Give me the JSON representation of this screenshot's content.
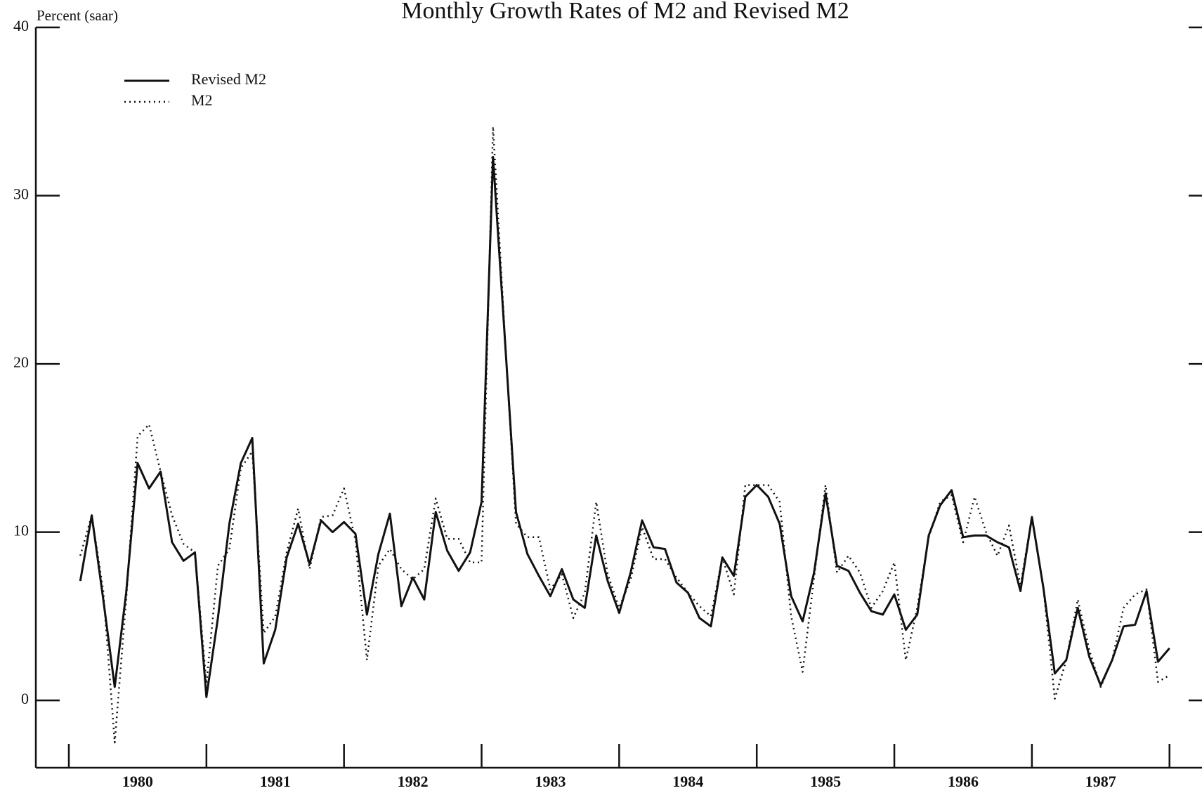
{
  "chart_data": {
    "type": "line",
    "title": "Monthly Growth Rates of M2 and Revised M2",
    "y_label": "Percent (saar)",
    "categories": [
      null,
      null,
      null,
      null,
      null,
      "1980",
      null,
      null,
      null,
      null,
      null,
      null,
      null,
      null,
      null,
      null,
      null,
      "1981",
      null,
      null,
      null,
      null,
      null,
      null,
      null,
      null,
      null,
      null,
      null,
      "1982",
      null,
      null,
      null,
      null,
      null,
      null,
      null,
      null,
      null,
      null,
      null,
      "1983",
      null,
      null,
      null,
      null,
      null,
      null,
      null,
      null,
      null,
      null,
      null,
      "1984",
      null,
      null,
      null,
      null,
      null,
      null,
      null,
      null,
      null,
      null,
      null,
      "1985",
      null,
      null,
      null,
      null,
      null,
      null,
      null,
      null,
      null,
      null,
      null,
      "1986",
      null,
      null,
      null,
      null,
      null,
      null,
      null,
      null,
      null,
      null,
      null,
      "1987",
      null,
      null,
      null,
      null,
      null,
      null
    ],
    "series": [
      {
        "name": "Revised M2",
        "color": "#111111",
        "dash": "solid",
        "values": [
          7.1,
          11.0,
          6.0,
          0.8,
          6.4,
          14.1,
          12.6,
          13.6,
          9.4,
          8.3,
          8.8,
          0.2,
          4.9,
          10.5,
          14.1,
          15.6,
          2.2,
          4.2,
          8.5,
          10.5,
          8.1,
          10.7,
          10.0,
          10.6,
          9.9,
          5.1,
          8.7,
          11.1,
          5.6,
          7.3,
          6.0,
          11.2,
          8.9,
          7.7,
          8.8,
          11.8,
          32.3,
          21.8,
          11.2,
          8.7,
          7.4,
          6.2,
          7.8,
          6.0,
          5.5,
          9.8,
          7.1,
          5.2,
          7.6,
          10.7,
          9.1,
          9.0,
          7.0,
          6.4,
          4.9,
          4.4,
          8.5,
          7.4,
          12.1,
          12.8,
          12.1,
          10.5,
          6.2,
          4.7,
          7.6,
          12.3,
          8.0,
          7.7,
          6.4,
          5.3,
          5.1,
          6.3,
          4.2,
          5.1,
          9.8,
          11.6,
          12.5,
          9.7,
          9.8,
          9.8,
          9.4,
          9.1,
          6.5,
          10.9,
          6.7,
          1.6,
          2.4,
          5.5,
          2.6,
          0.9,
          2.4,
          4.4,
          4.5,
          6.5,
          2.3,
          3.1
        ]
      },
      {
        "name": "M2",
        "color": "#111111",
        "dash": "dotted",
        "values": [
          8.6,
          11.0,
          6.5,
          -2.5,
          6.0,
          15.7,
          16.4,
          13.6,
          11.0,
          9.3,
          8.8,
          1.0,
          8.0,
          9.0,
          13.8,
          14.8,
          4.0,
          5.0,
          8.8,
          11.4,
          7.8,
          10.9,
          11.0,
          12.6,
          9.5,
          2.4,
          8.0,
          9.0,
          7.8,
          7.2,
          7.8,
          12.0,
          9.6,
          9.6,
          8.2,
          8.2,
          34.1,
          22.0,
          10.5,
          9.7,
          9.7,
          6.6,
          7.5,
          4.9,
          6.4,
          11.8,
          7.5,
          5.5,
          7.2,
          10.3,
          8.4,
          8.4,
          7.3,
          6.4,
          5.6,
          5.0,
          8.5,
          6.3,
          12.8,
          12.8,
          12.8,
          11.8,
          5.0,
          1.7,
          7.3,
          12.8,
          7.6,
          8.6,
          7.6,
          5.5,
          6.5,
          8.2,
          2.4,
          5.5,
          9.7,
          11.8,
          12.2,
          9.4,
          12.1,
          10.0,
          8.6,
          10.4,
          6.8,
          10.9,
          6.7,
          0.1,
          2.4,
          6.0,
          3.0,
          0.8,
          2.4,
          5.5,
          6.3,
          6.6,
          1.1,
          1.5
        ]
      }
    ],
    "ylim": [
      -4,
      40
    ],
    "yticks": [
      0,
      10,
      20,
      30,
      40
    ],
    "legend": "upper-left"
  }
}
